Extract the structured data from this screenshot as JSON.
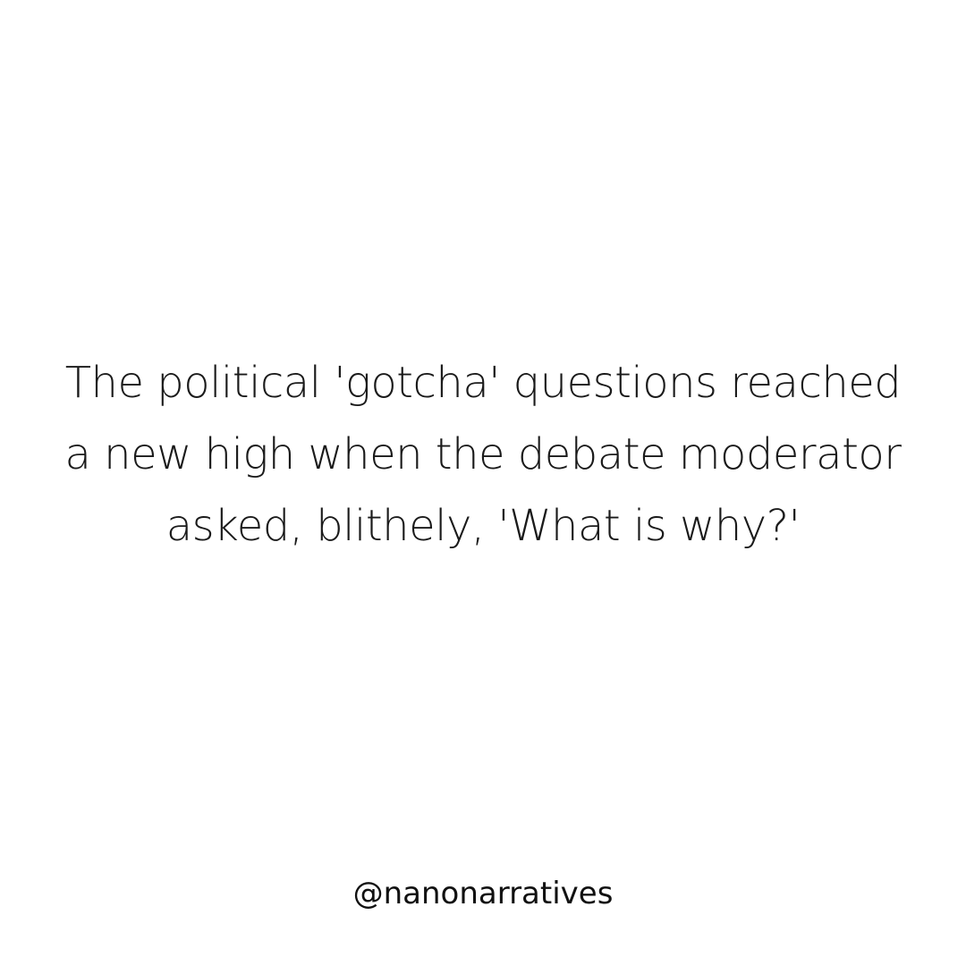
{
  "quote": {
    "text": "The political 'gotcha' questions reached a new high when the debate moderator asked, blithely, 'What is why?'"
  },
  "handle": "@nanonarratives",
  "colors": {
    "background": "#ffffff",
    "text": "#1a1a1a"
  }
}
